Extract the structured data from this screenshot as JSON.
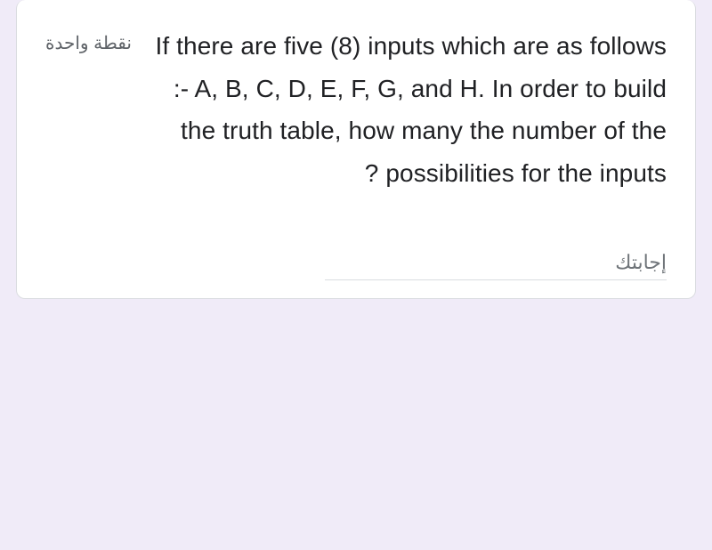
{
  "card": {
    "points_label": "نقطة واحدة",
    "question_text": "If there are five (8) inputs which are as follows :- A, B, C, D, E, F, G, and H. In order to build the truth table, how many the number of the possibilities for the inputs ?",
    "answer_placeholder": "إجابتك",
    "answer_value": ""
  },
  "styling": {
    "card_background": "#ffffff",
    "page_background": "#f0ebf8",
    "question_color": "#202124",
    "points_color": "#5f6368",
    "input_border": "#dadce0",
    "placeholder_color": "#70757a",
    "question_fontsize": 28,
    "points_fontsize": 20,
    "input_fontsize": 22
  }
}
